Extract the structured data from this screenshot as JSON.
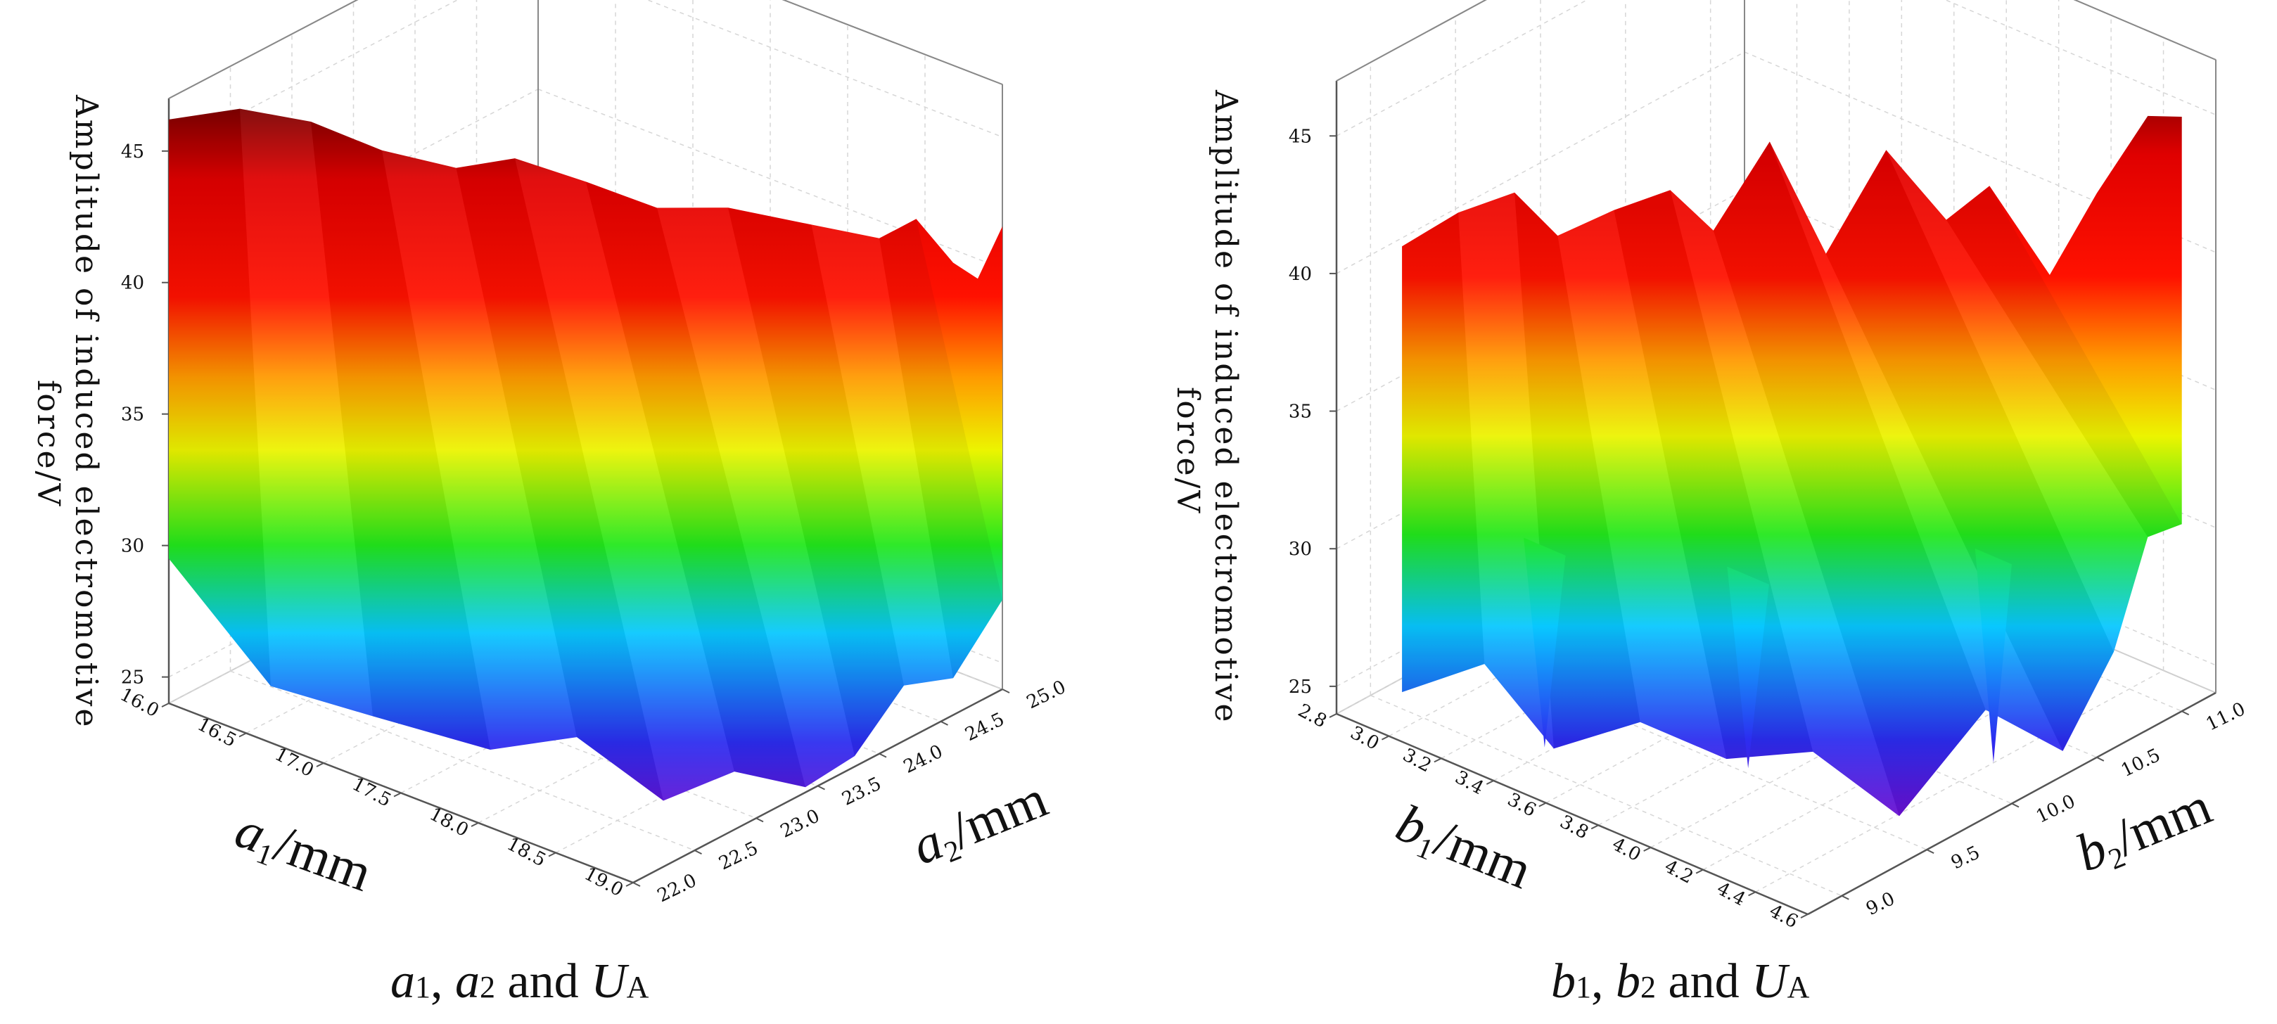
{
  "chart_data": [
    {
      "type": "surface3d",
      "caption": {
        "p1": "a",
        "s1": "1",
        "m1": ", ",
        "p2": "a",
        "s2": "2",
        "m2": " and ",
        "p3": "U",
        "s3": "A"
      },
      "zlabel": [
        "Amplitude of induced electromotive",
        "force/V"
      ],
      "xlabel": {
        "sym": "a",
        "sub": "1",
        "unit": "/mm"
      },
      "ylabel": {
        "sym": "a",
        "sub": "2",
        "unit": "/mm"
      },
      "xticks": [
        "16.0",
        "16.5",
        "17.0",
        "17.5",
        "18.0",
        "18.5",
        "19.0"
      ],
      "yticks": [
        "22.0",
        "22.5",
        "23.0",
        "23.5",
        "24.0",
        "24.5",
        "25.0"
      ],
      "zticks": [
        "25",
        "30",
        "35",
        "40",
        "45"
      ],
      "xlim": [
        16.0,
        19.0
      ],
      "ylim": [
        22.0,
        25.0
      ],
      "zlim": [
        24,
        47
      ],
      "top": [
        [
          16.0,
          22.0,
          46.2
        ],
        [
          16.3,
          22.2,
          46.8
        ],
        [
          16.6,
          22.4,
          46.5
        ],
        [
          16.9,
          22.6,
          45.6
        ],
        [
          17.3,
          22.7,
          45.6
        ],
        [
          17.6,
          22.8,
          46.4
        ],
        [
          17.9,
          23.0,
          45.7
        ],
        [
          18.2,
          23.2,
          44.9
        ],
        [
          18.5,
          23.4,
          45.1
        ],
        [
          18.8,
          23.7,
          44.4
        ],
        [
          19.0,
          24.0,
          43.6
        ],
        [
          19.0,
          24.3,
          43.6
        ],
        [
          19.0,
          24.6,
          41.2
        ],
        [
          19.0,
          24.8,
          40.1
        ],
        [
          19.0,
          25.0,
          41.6
        ]
      ],
      "bottom": [
        [
          16.0,
          22.0,
          29.5
        ],
        [
          16.5,
          22.2,
          25.3
        ],
        [
          17.0,
          22.4,
          24.8
        ],
        [
          17.6,
          22.6,
          24.4
        ],
        [
          18.0,
          22.8,
          25.3
        ],
        [
          18.4,
          23.0,
          23.3
        ],
        [
          18.7,
          23.2,
          24.6
        ],
        [
          19.0,
          23.4,
          24.2
        ],
        [
          19.0,
          23.8,
          24.4
        ],
        [
          19.0,
          24.2,
          26.1
        ],
        [
          19.0,
          24.6,
          25.4
        ],
        [
          19.0,
          25.0,
          27.4
        ]
      ],
      "spikes": []
    },
    {
      "type": "surface3d",
      "caption": {
        "p1": "b",
        "s1": "1",
        "m1": ", ",
        "p2": "b",
        "s2": "2",
        "m2": " and ",
        "p3": "U",
        "s3": "A"
      },
      "zlabel": [
        "Amplitude of induced electromotive",
        "force/V"
      ],
      "xlabel": {
        "sym": "b",
        "sub": "1",
        "unit": "/mm"
      },
      "ylabel": {
        "sym": "b",
        "sub": "2",
        "unit": "/mm"
      },
      "xticks": [
        "2.8",
        "3.0",
        "3.2",
        "3.4",
        "3.6",
        "3.8",
        "4.0",
        "4.2",
        "4.4",
        "4.6"
      ],
      "yticks": [
        "9.0",
        "9.5",
        "10.0",
        "10.5",
        "11.0"
      ],
      "zticks": [
        "25",
        "30",
        "35",
        "40",
        "45"
      ],
      "xlim": [
        2.8,
        4.6
      ],
      "ylim": [
        8.8,
        11.2
      ],
      "zlim": [
        24,
        47
      ],
      "top": [
        [
          3.05,
          8.8,
          42.0
        ],
        [
          3.2,
          8.9,
          43.5
        ],
        [
          3.35,
          9.0,
          44.5
        ],
        [
          3.45,
          9.1,
          43.0
        ],
        [
          3.6,
          9.2,
          44.2
        ],
        [
          3.75,
          9.3,
          45.2
        ],
        [
          3.85,
          9.4,
          43.8
        ],
        [
          4.0,
          9.5,
          47.3
        ],
        [
          4.15,
          9.6,
          43.5
        ],
        [
          4.25,
          9.8,
          47.0
        ],
        [
          4.35,
          10.0,
          44.2
        ],
        [
          4.45,
          10.1,
          45.5
        ],
        [
          4.55,
          10.3,
          42.0
        ],
        [
          4.6,
          10.5,
          44.5
        ],
        [
          4.6,
          10.8,
          46.3
        ],
        [
          4.6,
          11.0,
          45.6
        ]
      ],
      "bottom": [
        [
          3.05,
          8.8,
          25.8
        ],
        [
          3.3,
          8.9,
          27.5
        ],
        [
          3.5,
          9.0,
          24.9
        ],
        [
          3.7,
          9.2,
          26.0
        ],
        [
          3.9,
          9.4,
          24.8
        ],
        [
          4.1,
          9.6,
          25.2
        ],
        [
          4.3,
          9.8,
          23.0
        ],
        [
          4.5,
          10.0,
          27.0
        ],
        [
          4.6,
          10.3,
          24.9
        ],
        [
          4.6,
          10.6,
          27.5
        ],
        [
          4.6,
          10.8,
          31.0
        ],
        [
          4.6,
          11.0,
          30.8
        ]
      ],
      "spikes": [
        {
          "at": [
            3.4,
            9.1
          ],
          "z": 24.2,
          "width": 0.08
        },
        {
          "at": [
            3.95,
            9.45
          ],
          "z": 24.5,
          "width": 0.08
        },
        {
          "at": [
            4.4,
            10.2
          ],
          "z": 24.0,
          "width": 0.07
        }
      ]
    }
  ]
}
